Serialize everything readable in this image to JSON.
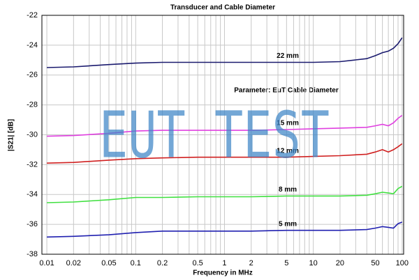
{
  "chart_data": {
    "type": "line",
    "title": "Transducer and Cable Diameter",
    "xlabel": "Frequency in MHz",
    "ylabel": "|S21| [dB]",
    "annotation": "Parameter: EuT Cable Diameter",
    "watermark": "EUT TEST",
    "xscale": "log",
    "grid": true,
    "xlim": [
      0.0088,
      104
    ],
    "ylim": [
      -38,
      -22
    ],
    "xticks": [
      0.01,
      0.02,
      0.05,
      0.1,
      0.2,
      0.5,
      1,
      2,
      5,
      10,
      20,
      50,
      100
    ],
    "xminorticks": [
      0.03,
      0.04,
      0.06,
      0.07,
      0.08,
      0.09,
      0.3,
      0.4,
      0.6,
      0.7,
      0.8,
      0.9,
      3,
      4,
      6,
      7,
      8,
      9,
      30,
      40,
      60,
      70,
      80,
      90
    ],
    "yticks": [
      -38,
      -36,
      -34,
      -32,
      -30,
      -28,
      -26,
      -24,
      -22
    ],
    "x": [
      0.01,
      0.02,
      0.05,
      0.1,
      0.2,
      0.5,
      1,
      2,
      5,
      10,
      20,
      40,
      50,
      60,
      70,
      80,
      90,
      100
    ],
    "series": [
      {
        "name": "22 mm",
        "color": "#1a1a6e",
        "values": [
          -25.5,
          -25.45,
          -25.3,
          -25.2,
          -25.15,
          -25.15,
          -25.15,
          -25.15,
          -25.15,
          -25.15,
          -25.1,
          -24.9,
          -24.7,
          -24.5,
          -24.4,
          -24.2,
          -23.9,
          -23.5
        ]
      },
      {
        "name": "15 mm",
        "color": "#e040e0",
        "values": [
          -30.1,
          -30.05,
          -29.9,
          -29.75,
          -29.7,
          -29.7,
          -29.7,
          -29.7,
          -29.65,
          -29.6,
          -29.55,
          -29.5,
          -29.4,
          -29.3,
          -29.4,
          -29.2,
          -28.9,
          -28.7
        ]
      },
      {
        "name": "12 mm",
        "color": "#d02020",
        "values": [
          -31.9,
          -31.85,
          -31.7,
          -31.6,
          -31.55,
          -31.5,
          -31.5,
          -31.5,
          -31.5,
          -31.45,
          -31.4,
          -31.3,
          -31.15,
          -31.0,
          -31.15,
          -31.0,
          -30.8,
          -30.6
        ]
      },
      {
        "name": "8 mm",
        "color": "#40e040",
        "values": [
          -34.55,
          -34.5,
          -34.35,
          -34.2,
          -34.2,
          -34.15,
          -34.15,
          -34.15,
          -34.1,
          -34.1,
          -34.1,
          -34.05,
          -33.95,
          -33.85,
          -33.9,
          -33.95,
          -33.6,
          -33.45
        ]
      },
      {
        "name": "5 mm",
        "color": "#2020b0",
        "values": [
          -36.85,
          -36.8,
          -36.7,
          -36.55,
          -36.45,
          -36.45,
          -36.45,
          -36.45,
          -36.4,
          -36.4,
          -36.4,
          -36.35,
          -36.25,
          -36.15,
          -36.2,
          -36.25,
          -35.95,
          -35.85
        ]
      }
    ]
  }
}
